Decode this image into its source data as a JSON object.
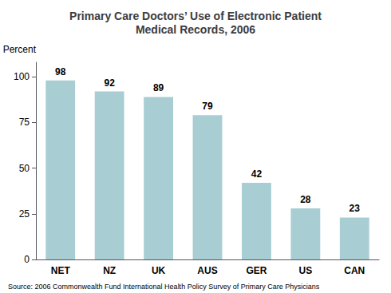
{
  "chart_data": {
    "type": "bar",
    "title": "Primary Care Doctors’ Use of Electronic Patient\nMedical Records, 2006",
    "categories": [
      "NET",
      "NZ",
      "UK",
      "AUS",
      "GER",
      "US",
      "CAN"
    ],
    "values": [
      98,
      92,
      89,
      79,
      42,
      28,
      23
    ],
    "color": "#a8ced4",
    "ylabel": "Percent",
    "ylim": [
      0,
      108
    ],
    "yticks": [
      0,
      25,
      50,
      75,
      100
    ],
    "grid": false,
    "data_labels": true,
    "annotations": [
      "Source: 2006 Commonwealth Fund International Health Policy Survey of Primary Care Physicians"
    ]
  }
}
